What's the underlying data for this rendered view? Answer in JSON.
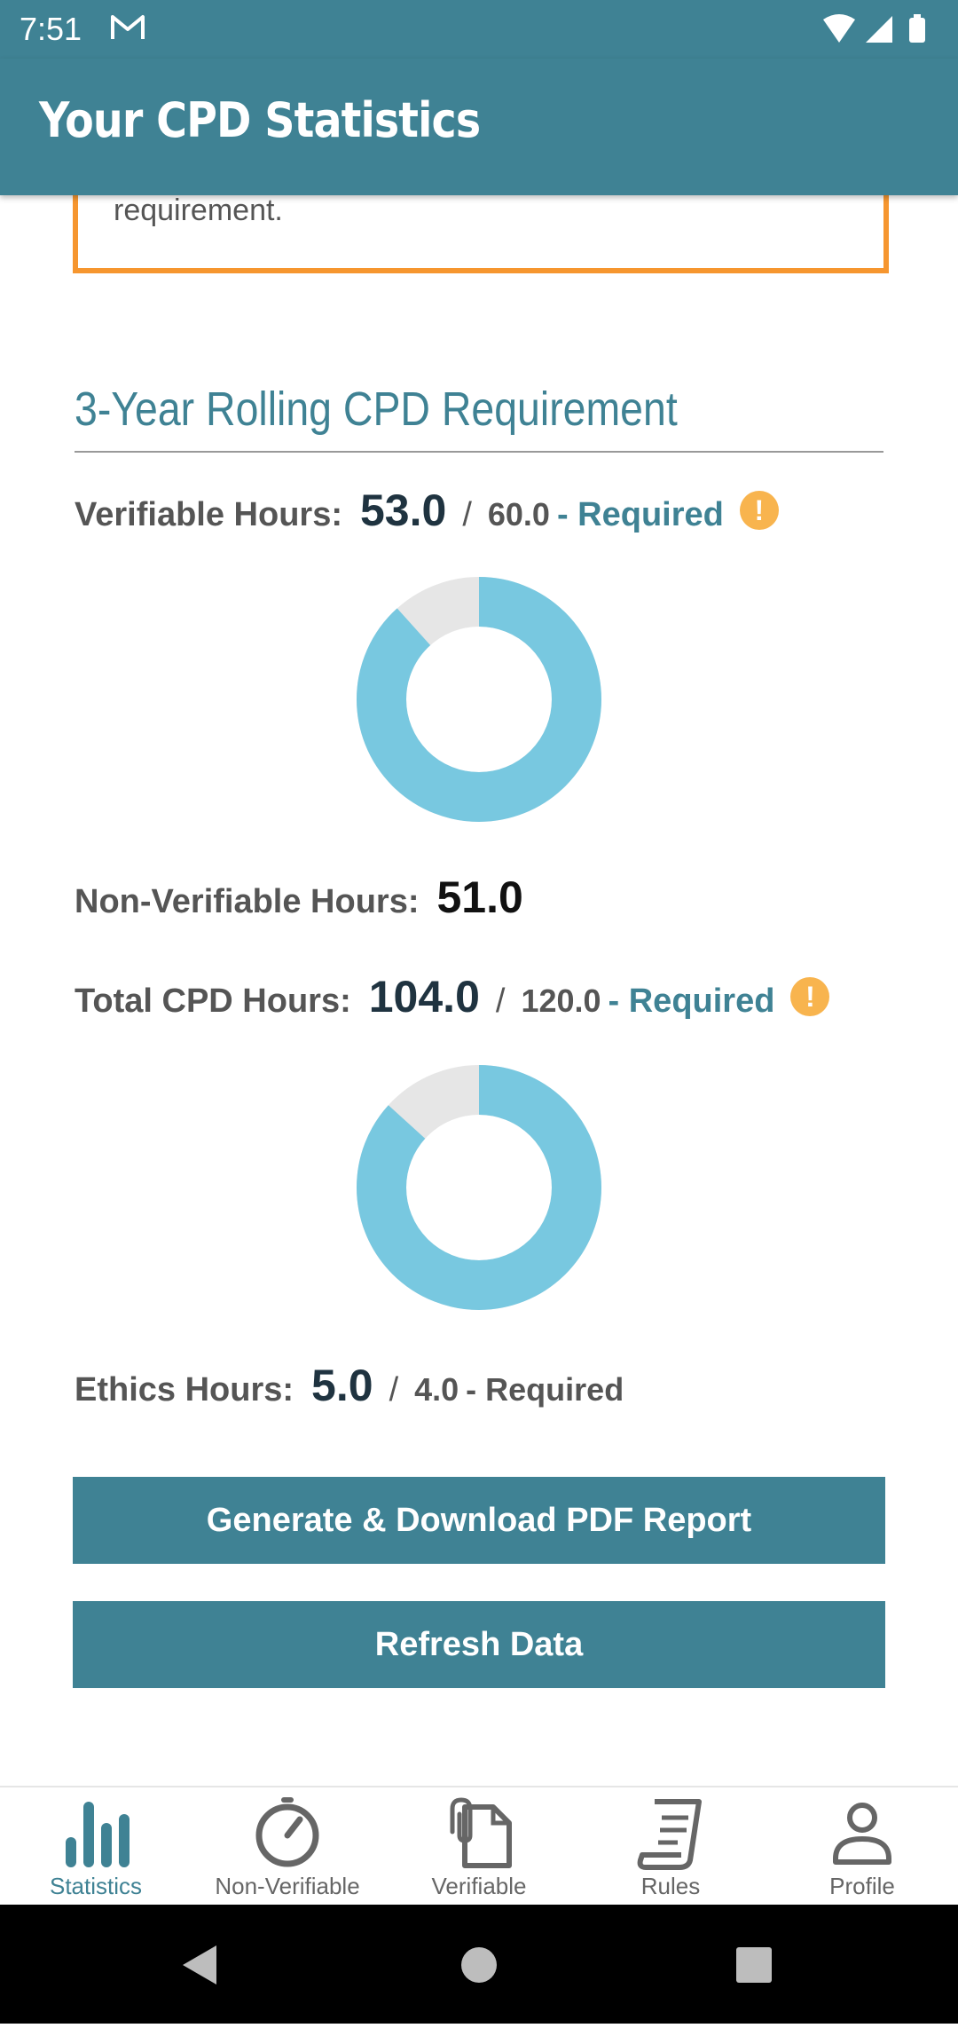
{
  "status_bar": {
    "time": "7:51"
  },
  "app_bar": {
    "title": "Your CPD Statistics"
  },
  "notice": {
    "text": "to completely satisfy your province's CPD requirement."
  },
  "section": {
    "title": "3-Year Rolling CPD Requirement"
  },
  "verifiable": {
    "label": "Verifiable Hours:",
    "value": "53.0",
    "separator": "/",
    "required": "60.0",
    "required_label": "- Required",
    "progress_fraction": 0.883,
    "warning_icon": "!"
  },
  "non_verifiable": {
    "label": "Non-Verifiable Hours:",
    "value": "51.0"
  },
  "total": {
    "label": "Total CPD Hours:",
    "value": "104.0",
    "separator": "/",
    "required": "120.0",
    "required_label": "- Required",
    "progress_fraction": 0.867,
    "warning_icon": "!"
  },
  "ethics": {
    "label": "Ethics Hours:",
    "value": "5.0",
    "separator": "/",
    "required": "4.0",
    "required_label": "- Required"
  },
  "buttons": {
    "generate_pdf": "Generate & Download PDF Report",
    "refresh": "Refresh Data"
  },
  "bottom_nav": {
    "items": [
      {
        "label": "Statistics",
        "icon": "bar-chart-icon",
        "active": true
      },
      {
        "label": "Non-Verifiable",
        "icon": "timer-icon",
        "active": false
      },
      {
        "label": "Verifiable",
        "icon": "document-clip-icon",
        "active": false
      },
      {
        "label": "Rules",
        "icon": "scroll-icon",
        "active": false
      },
      {
        "label": "Profile",
        "icon": "person-icon",
        "active": false
      }
    ]
  },
  "colors": {
    "primary": "#3f8294",
    "accent_orange": "#f6962f",
    "donut_fill": "#78c8e0",
    "donut_track": "#e6e6e6",
    "warning": "#f8b44e"
  }
}
